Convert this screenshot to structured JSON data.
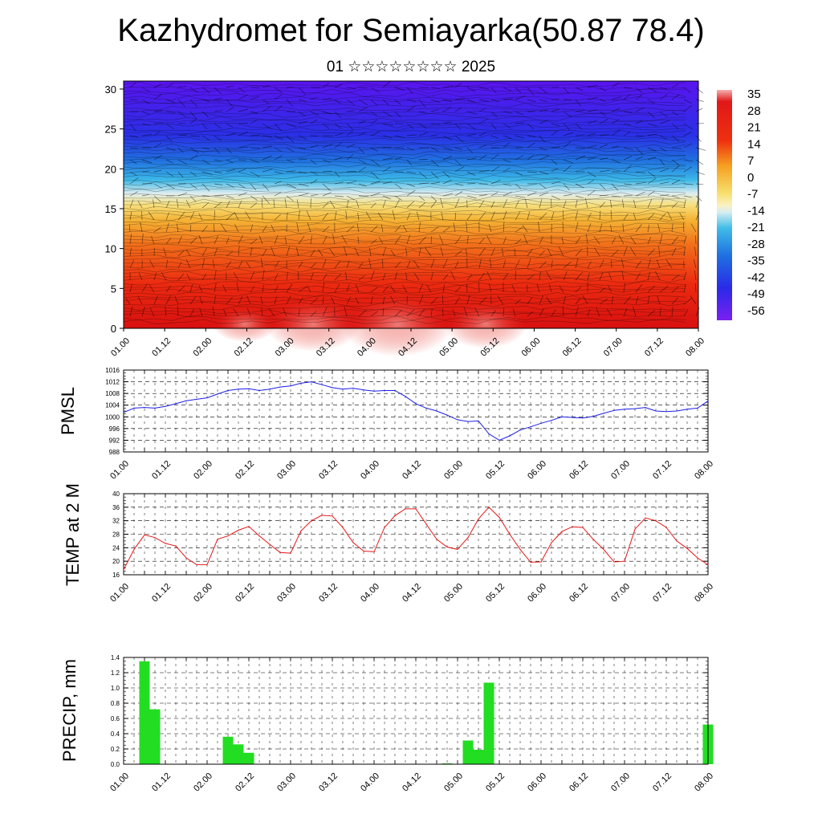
{
  "title": "Kazhydromet for Semiayarka(50.87 78.4)",
  "subtitle": "01 ☆☆☆☆☆☆☆☆ 2025",
  "chart_data": [
    {
      "type": "heatmap",
      "name": "vertical cross-section",
      "x_ticks": [
        "01.00",
        "01.12",
        "02.00",
        "02.12",
        "03.00",
        "03.12",
        "04.00",
        "04.12",
        "05.00",
        "05.12",
        "06.00",
        "06.12",
        "07.00",
        "07.12",
        "08.00"
      ],
      "y_ticks": [
        0,
        5,
        10,
        15,
        20,
        25,
        30
      ],
      "ylim": [
        0,
        31
      ],
      "colorbar_labels": [
        35,
        28,
        21,
        14,
        7,
        0,
        -7,
        -14,
        -21,
        -28,
        -35,
        -42,
        -49,
        -56
      ],
      "colors": {
        "hot": "#e11a10",
        "warm": "#f6e080",
        "cold": "#1f9fe0",
        "top": "#5517f0"
      }
    },
    {
      "type": "line",
      "name": "PMSL",
      "ylabel": "PMSL",
      "ylim": [
        988,
        1016
      ],
      "y_ticks": [
        988,
        992,
        996,
        1000,
        1004,
        1008,
        1012,
        1016
      ],
      "x_ticks": [
        "01.00",
        "01.12",
        "02.00",
        "02.12",
        "03.00",
        "03.12",
        "04.00",
        "04.12",
        "05.00",
        "05.12",
        "06.00",
        "06.12",
        "07.00",
        "07.12",
        "08.00"
      ],
      "x": [
        0,
        3,
        6,
        9,
        12,
        15,
        18,
        21,
        24,
        27,
        30,
        33,
        36,
        39,
        42,
        45,
        48,
        51,
        54,
        57,
        60,
        63,
        66,
        69,
        72,
        75,
        78,
        81,
        84,
        87,
        90,
        93,
        96,
        99,
        102,
        105,
        108,
        111,
        114,
        117,
        120,
        123,
        126,
        129,
        132,
        135,
        138,
        141,
        144,
        147,
        150,
        153,
        156,
        159,
        162,
        165,
        168
      ],
      "values": [
        1001.5,
        1003.0,
        1003.2,
        1003.0,
        1003.6,
        1004.5,
        1005.5,
        1006.0,
        1006.5,
        1007.8,
        1009.0,
        1009.5,
        1009.6,
        1009.0,
        1009.5,
        1010.2,
        1010.6,
        1011.5,
        1012.0,
        1011.0,
        1010.0,
        1009.5,
        1009.8,
        1009.2,
        1008.8,
        1009.0,
        1009.0,
        1007.0,
        1004.5,
        1003.0,
        1002.0,
        1000.6,
        999.0,
        998.4,
        998.6,
        994.2,
        992.0,
        993.5,
        995.5,
        996.6,
        997.8,
        998.8,
        1000.0,
        999.8,
        999.6,
        1000.2,
        1001.2,
        1002.2,
        1002.6,
        1002.8,
        1003.2,
        1002.0,
        1001.8,
        1002.0,
        1002.6,
        1003.0,
        1005.4
      ],
      "color": "#1d1fe6"
    },
    {
      "type": "line",
      "name": "TEMP at 2 M",
      "ylabel": "TEMP at 2 M",
      "ylim": [
        16,
        40
      ],
      "y_ticks": [
        16,
        20,
        24,
        28,
        32,
        36,
        40
      ],
      "x_ticks": [
        "01.00",
        "01.12",
        "02.00",
        "02.12",
        "03.00",
        "03.12",
        "04.00",
        "04.12",
        "05.00",
        "05.12",
        "06.00",
        "06.12",
        "07.00",
        "07.12",
        "08.00"
      ],
      "x": [
        0,
        3,
        6,
        9,
        12,
        15,
        18,
        21,
        24,
        27,
        30,
        33,
        36,
        39,
        42,
        45,
        48,
        51,
        54,
        57,
        60,
        63,
        66,
        69,
        72,
        75,
        78,
        81,
        84,
        87,
        90,
        93,
        96,
        99,
        102,
        105,
        108,
        111,
        114,
        117,
        120,
        123,
        126,
        129,
        132,
        135,
        138,
        141,
        144,
        147,
        150,
        153,
        156,
        159,
        162,
        165,
        168
      ],
      "values": [
        17.5,
        23.5,
        27.8,
        27.0,
        25.3,
        24.5,
        21.0,
        19.0,
        19.0,
        26.5,
        27.5,
        29.2,
        30.3,
        27.5,
        25.0,
        22.6,
        22.4,
        29.0,
        32.0,
        33.6,
        33.4,
        30.0,
        25.5,
        23.0,
        22.8,
        30.0,
        33.5,
        35.5,
        35.5,
        31.0,
        26.5,
        24.2,
        23.5,
        27.0,
        32.5,
        36.0,
        33.0,
        28.0,
        23.5,
        19.7,
        19.8,
        25.5,
        28.8,
        30.2,
        30.0,
        26.5,
        23.5,
        19.8,
        20.0,
        29.5,
        32.8,
        32.0,
        30.0,
        26.0,
        23.8,
        21.0,
        19.0
      ],
      "color": "#e51616"
    },
    {
      "type": "bar",
      "name": "PRECIP",
      "ylabel": "PRECIP, mm",
      "ylim": [
        0,
        1.4
      ],
      "y_ticks": [
        "0.0",
        "0.2",
        "0.4",
        "0.6",
        "0.8",
        "1.0",
        "1.2",
        "1.4"
      ],
      "x_ticks": [
        "01.00",
        "01.12",
        "02.00",
        "02.12",
        "03.00",
        "03.12",
        "04.00",
        "04.12",
        "05.00",
        "05.12",
        "06.00",
        "06.12",
        "07.00",
        "07.12",
        "08.00"
      ],
      "x": [
        6,
        9,
        30,
        33,
        36,
        93,
        99,
        102,
        105,
        168
      ],
      "values": [
        1.35,
        0.72,
        0.36,
        0.26,
        0.15,
        0.01,
        0.31,
        0.19,
        1.07,
        0.52
      ],
      "color": "#22dd22"
    }
  ]
}
